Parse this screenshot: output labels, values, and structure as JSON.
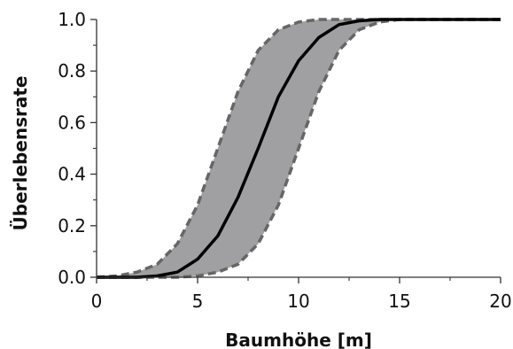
{
  "chart_data": {
    "type": "line",
    "title": "",
    "xlabel": "Baumhöhe [m]",
    "ylabel": "Überlebensrate",
    "xlim": [
      0,
      20
    ],
    "ylim": [
      0,
      1
    ],
    "x_ticks": [
      "0",
      "5",
      "10",
      "15",
      "20"
    ],
    "y_ticks": [
      "0.0",
      "0.2",
      "0.4",
      "0.6",
      "0.8",
      "1.0"
    ],
    "grid": false,
    "legend": "none",
    "colors": {
      "band": "#a0a0a3",
      "band_edge": "#666666",
      "line": "#000000",
      "axis": "#333333"
    },
    "series": [
      {
        "role": "mean",
        "style": "solid",
        "x": [
          0,
          1,
          2,
          3,
          4,
          5,
          6,
          7,
          8,
          9,
          10,
          11,
          12,
          13,
          14,
          15,
          16,
          17,
          18,
          19,
          20
        ],
        "y": [
          0,
          0,
          0,
          0.005,
          0.02,
          0.07,
          0.16,
          0.31,
          0.5,
          0.7,
          0.84,
          0.93,
          0.98,
          0.995,
          1,
          1,
          1,
          1,
          1,
          1,
          1
        ]
      },
      {
        "role": "upper",
        "style": "dashed",
        "x": [
          0,
          1,
          2,
          3,
          4,
          5,
          6,
          7,
          8,
          9,
          10,
          11,
          12,
          13,
          14,
          15,
          16,
          17,
          18,
          19,
          20
        ],
        "y": [
          0,
          0.005,
          0.02,
          0.05,
          0.13,
          0.28,
          0.5,
          0.72,
          0.88,
          0.96,
          0.99,
          1,
          1,
          1,
          1,
          1,
          1,
          1,
          1,
          1,
          1
        ]
      },
      {
        "role": "lower",
        "style": "dashed",
        "x": [
          0,
          1,
          2,
          3,
          4,
          5,
          6,
          7,
          8,
          9,
          10,
          11,
          12,
          13,
          14,
          15,
          16,
          17,
          18,
          19,
          20
        ],
        "y": [
          0,
          0,
          0,
          0,
          0,
          0.005,
          0.02,
          0.05,
          0.13,
          0.28,
          0.5,
          0.72,
          0.88,
          0.96,
          0.99,
          1,
          1,
          1,
          1,
          1,
          1
        ]
      }
    ]
  }
}
